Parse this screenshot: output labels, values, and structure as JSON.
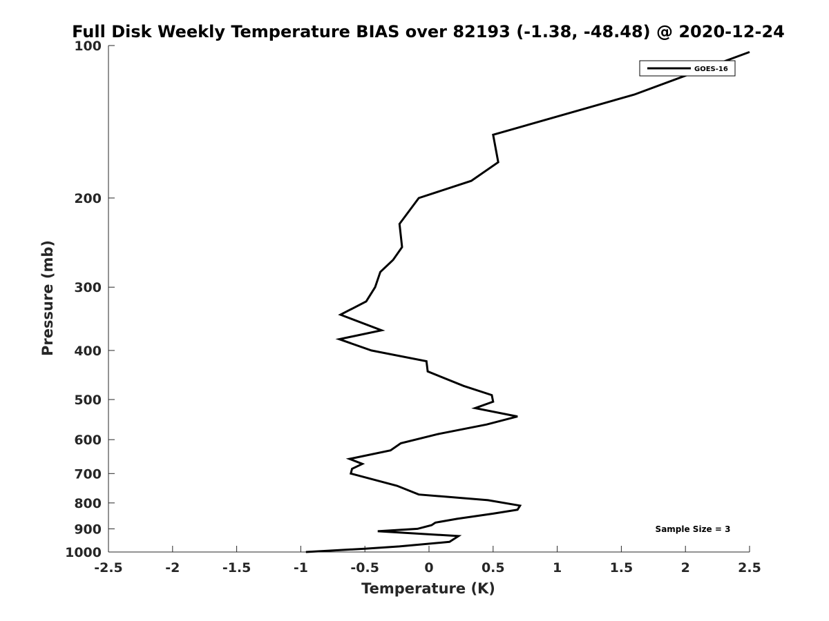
{
  "chart_data": {
    "type": "line",
    "title": "Full Disk Weekly Temperature BIAS over 82193 (-1.38, -48.48) @ 2020-12-24",
    "xlabel": "Temperature (K)",
    "ylabel": "Pressure (mb)",
    "xlim": [
      -2.5,
      2.5
    ],
    "ylim": [
      1000,
      100
    ],
    "y_scale": "log",
    "y_reversed": true,
    "grid": false,
    "x_ticks": [
      -2.5,
      -2,
      -1.5,
      -1,
      -0.5,
      0,
      0.5,
      1,
      1.5,
      2,
      2.5
    ],
    "x_tick_labels": [
      "-2.5",
      "-2",
      "-1.5",
      "-1",
      "-0.5",
      "0",
      "0.5",
      "1",
      "1.5",
      "2",
      "2.5"
    ],
    "y_ticks": [
      100,
      200,
      300,
      400,
      500,
      600,
      700,
      800,
      900,
      1000
    ],
    "y_tick_labels": [
      "100",
      "200",
      "300",
      "400",
      "500",
      "600",
      "700",
      "800",
      "900",
      "1000"
    ],
    "legend": {
      "position": "top-right",
      "entries": [
        "GOES-16"
      ]
    },
    "annotation": "Sample Size = 3",
    "series": [
      {
        "name": "GOES-16",
        "color": "#000000",
        "points": [
          {
            "x": 2.5,
            "y": 103
          },
          {
            "x": 1.6,
            "y": 125
          },
          {
            "x": 0.5,
            "y": 150
          },
          {
            "x": 0.54,
            "y": 170
          },
          {
            "x": 0.33,
            "y": 185
          },
          {
            "x": -0.08,
            "y": 200
          },
          {
            "x": -0.23,
            "y": 225
          },
          {
            "x": -0.21,
            "y": 250
          },
          {
            "x": -0.28,
            "y": 265
          },
          {
            "x": -0.38,
            "y": 280
          },
          {
            "x": -0.42,
            "y": 300
          },
          {
            "x": -0.49,
            "y": 320
          },
          {
            "x": -0.69,
            "y": 340
          },
          {
            "x": -0.37,
            "y": 365
          },
          {
            "x": -0.7,
            "y": 380
          },
          {
            "x": -0.45,
            "y": 400
          },
          {
            "x": -0.02,
            "y": 420
          },
          {
            "x": -0.01,
            "y": 440
          },
          {
            "x": 0.27,
            "y": 470
          },
          {
            "x": 0.49,
            "y": 490
          },
          {
            "x": 0.5,
            "y": 505
          },
          {
            "x": 0.36,
            "y": 520
          },
          {
            "x": 0.69,
            "y": 540
          },
          {
            "x": 0.45,
            "y": 560
          },
          {
            "x": 0.07,
            "y": 585
          },
          {
            "x": -0.22,
            "y": 610
          },
          {
            "x": -0.3,
            "y": 630
          },
          {
            "x": -0.62,
            "y": 655
          },
          {
            "x": -0.52,
            "y": 670
          },
          {
            "x": -0.6,
            "y": 685
          },
          {
            "x": -0.61,
            "y": 700
          },
          {
            "x": -0.25,
            "y": 740
          },
          {
            "x": -0.08,
            "y": 770
          },
          {
            "x": 0.46,
            "y": 790
          },
          {
            "x": 0.71,
            "y": 810
          },
          {
            "x": 0.69,
            "y": 825
          },
          {
            "x": 0.5,
            "y": 840
          },
          {
            "x": 0.22,
            "y": 860
          },
          {
            "x": 0.05,
            "y": 875
          },
          {
            "x": 0.02,
            "y": 885
          },
          {
            "x": -0.09,
            "y": 900
          },
          {
            "x": -0.4,
            "y": 910
          },
          {
            "x": 0.23,
            "y": 930
          },
          {
            "x": 0.16,
            "y": 955
          },
          {
            "x": -0.23,
            "y": 975
          },
          {
            "x": -0.5,
            "y": 985
          },
          {
            "x": -0.96,
            "y": 1000
          }
        ]
      }
    ]
  }
}
